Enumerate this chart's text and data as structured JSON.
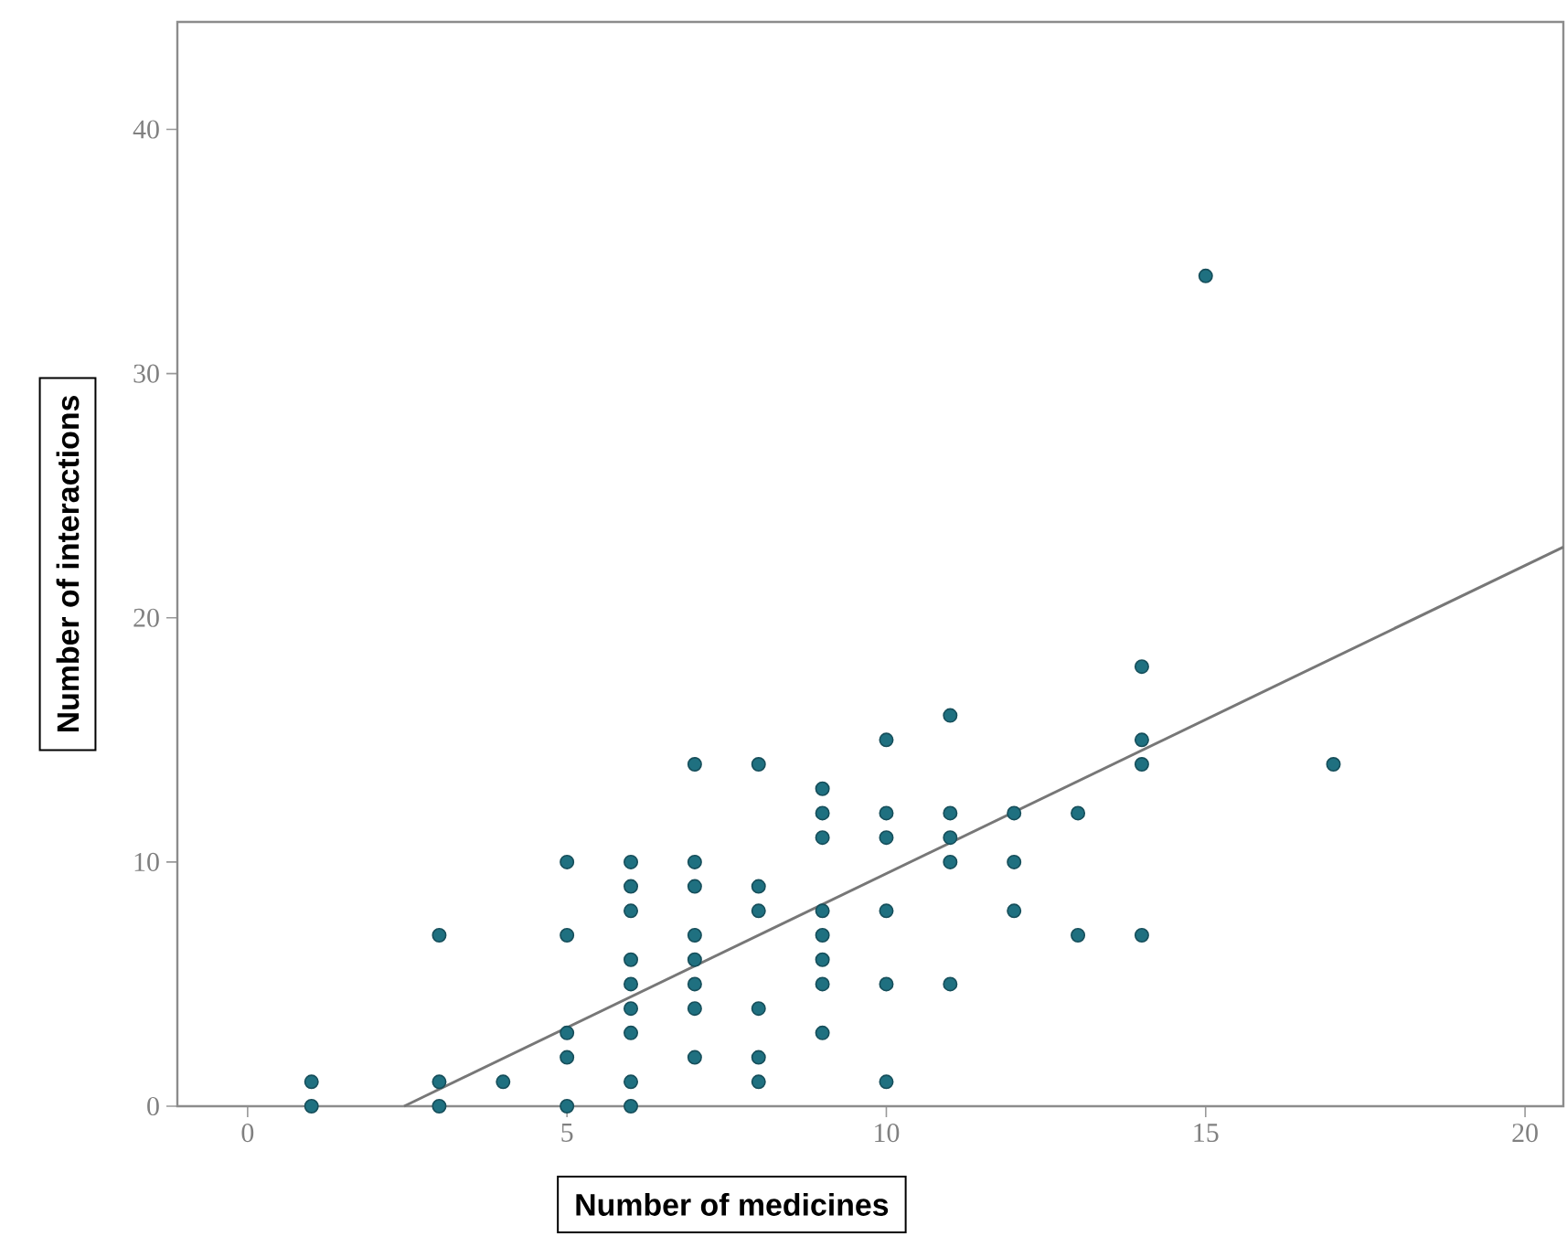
{
  "chart_data": {
    "type": "scatter",
    "xlabel": "Number of medicines",
    "ylabel": "Number of interactions",
    "xlim": [
      -1.1,
      20.6
    ],
    "ylim": [
      0,
      44.4
    ],
    "xticks": [
      0,
      5,
      10,
      15,
      20
    ],
    "yticks": [
      0,
      10,
      20,
      30,
      40
    ],
    "grid": false,
    "series": [
      {
        "type": "scatter",
        "marker": "circle",
        "color": "#1f7080",
        "x": [
          1,
          1,
          3,
          3,
          3,
          4,
          5,
          5,
          5,
          5,
          5,
          6,
          6,
          6,
          6,
          6,
          6,
          6,
          6,
          6,
          7,
          7,
          7,
          7,
          7,
          7,
          7,
          7,
          8,
          8,
          8,
          8,
          8,
          8,
          9,
          9,
          9,
          9,
          9,
          9,
          9,
          9,
          10,
          10,
          10,
          10,
          10,
          10,
          11,
          11,
          11,
          11,
          11,
          12,
          12,
          12,
          13,
          13,
          14,
          14,
          14,
          14,
          15,
          17
        ],
        "values": [
          1,
          0,
          7,
          1,
          0,
          1,
          10,
          7,
          3,
          2,
          0,
          10,
          9,
          8,
          6,
          5,
          4,
          3,
          1,
          0,
          14,
          10,
          9,
          7,
          6,
          5,
          4,
          2,
          14,
          9,
          8,
          4,
          2,
          1,
          13,
          12,
          11,
          8,
          7,
          6,
          5,
          3,
          15,
          12,
          11,
          8,
          5,
          1,
          16,
          12,
          11,
          10,
          5,
          12,
          10,
          8,
          12,
          7,
          18,
          15,
          14,
          7,
          34,
          14
        ]
      },
      {
        "type": "line",
        "color": "#777777",
        "marker": "none",
        "line_style": "solid",
        "x": [
          2.45,
          20.6
        ],
        "values": [
          0,
          22.9
        ]
      }
    ]
  }
}
